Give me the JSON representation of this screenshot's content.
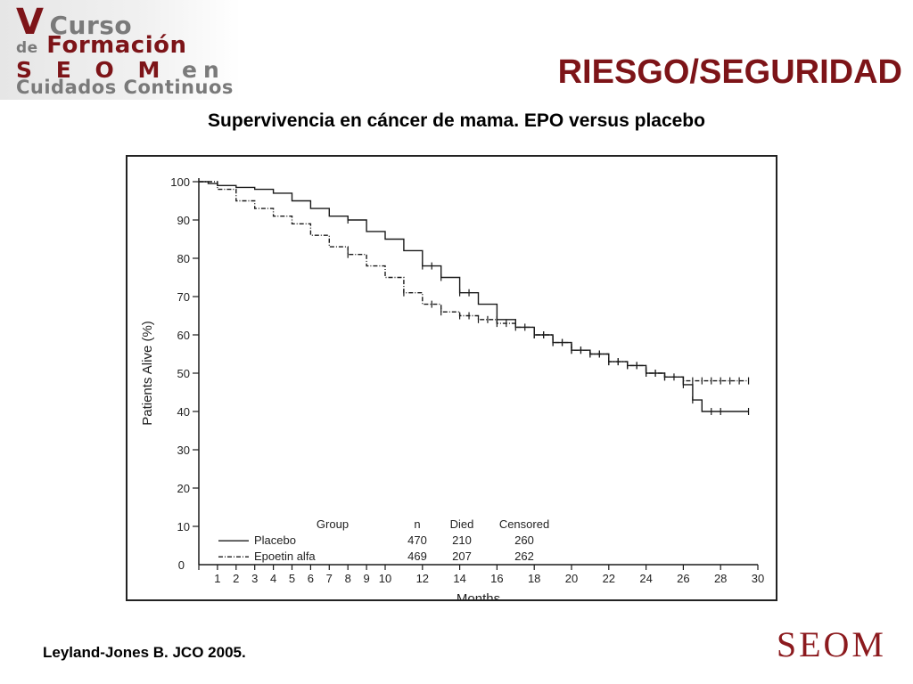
{
  "header": {
    "logo_lines": [
      {
        "big": "V",
        "rest": "Curso"
      },
      {
        "small": "de",
        "rest": "Formación"
      },
      {
        "big": "S E O M",
        "rest": "en"
      },
      {
        "rest": "Cuidados Continuos"
      }
    ],
    "title": "RIESGO/SEGURIDAD",
    "subtitle": "Supervivencia en cáncer de mama. EPO versus placebo"
  },
  "footer": {
    "citation": "Leyland-Jones B. JCO 2005.",
    "logo_text": "SEOM"
  },
  "colors": {
    "brand": "#7d1418",
    "logo_gray": "#7a7a7a",
    "curve": "#1a1a1a"
  },
  "chart_data": {
    "type": "line",
    "xlabel": "Months",
    "ylabel": "Patients Alive (%)",
    "x_ticks": [
      0,
      1,
      2,
      3,
      4,
      5,
      6,
      7,
      8,
      9,
      10,
      12,
      14,
      16,
      18,
      20,
      22,
      24,
      26,
      28,
      30
    ],
    "y_ticks": [
      10,
      20,
      30,
      40,
      50,
      60,
      70,
      80,
      90,
      100
    ],
    "y_zero_label": "0",
    "xlim": [
      0,
      30
    ],
    "ylim": [
      0,
      100
    ],
    "grid": false,
    "series": [
      {
        "name": "Placebo",
        "style": "solid",
        "x": [
          0,
          0.5,
          1,
          2,
          3,
          4,
          5,
          6,
          7,
          8,
          9,
          10,
          11,
          12,
          13,
          14,
          15,
          16,
          17,
          18,
          19,
          20,
          21,
          22,
          23,
          24,
          25,
          26,
          26.5,
          27,
          28,
          29.5
        ],
        "y": [
          100,
          99.5,
          99,
          98.5,
          98,
          97,
          95,
          93,
          91,
          90,
          87,
          85,
          82,
          78,
          75,
          71,
          68,
          64,
          62,
          60,
          58,
          56,
          55,
          53,
          52,
          50,
          49,
          47,
          43,
          40,
          40,
          40
        ],
        "censor_x": [
          8,
          12,
          12.5,
          13,
          14,
          14.5,
          16,
          18,
          18.5,
          19,
          19.5,
          20,
          20.5,
          21,
          21.5,
          22,
          22.5,
          23,
          23.5,
          24,
          24.5,
          25,
          25.5,
          26,
          26.5,
          27.5,
          28,
          29.5
        ]
      },
      {
        "name": "Epoetin alfa",
        "style": "dashed",
        "x": [
          0,
          1,
          2,
          3,
          4,
          5,
          6,
          7,
          8,
          9,
          10,
          11,
          12,
          13,
          14,
          15,
          16,
          17,
          18,
          19,
          20,
          21,
          22,
          23,
          24,
          25,
          26,
          27,
          28,
          29.5
        ],
        "y": [
          100,
          98,
          95,
          93,
          91,
          89,
          86,
          83,
          81,
          78,
          75,
          71,
          68,
          66,
          65,
          64,
          63,
          62,
          60,
          58,
          56,
          55,
          53,
          52,
          50,
          49,
          48,
          48,
          48,
          48
        ],
        "censor_x": [
          8,
          11,
          12.5,
          13,
          14,
          14.5,
          15,
          15.5,
          16,
          16.5,
          17,
          17.5,
          18,
          18.5,
          19,
          19.5,
          20,
          20.5,
          21,
          21.5,
          22,
          22.5,
          23,
          23.5,
          24,
          24.5,
          25,
          26,
          26.5,
          27,
          27.5,
          28,
          28.5,
          29,
          29.5
        ]
      }
    ],
    "legend": {
      "position": "bottom-left",
      "headers": [
        "Group",
        "n",
        "Died",
        "Censored"
      ],
      "rows": [
        [
          "Placebo",
          "470",
          "210",
          "260"
        ],
        [
          "Epoetin alfa",
          "469",
          "207",
          "262"
        ]
      ]
    }
  }
}
